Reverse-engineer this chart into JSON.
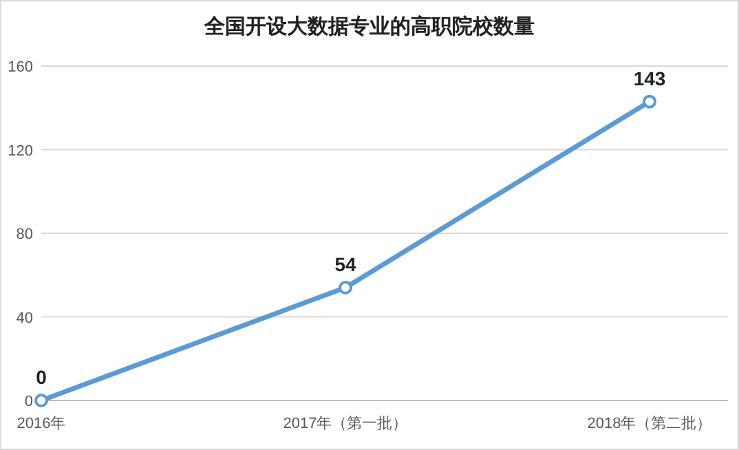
{
  "chart_data": {
    "type": "line",
    "title": "全国开设大数据专业的高职院校数量",
    "categories": [
      "2016年",
      "2017年（第一批）",
      "2018年（第二批）"
    ],
    "values": [
      0,
      54,
      143
    ],
    "color": "#5b9bd5",
    "ylim": [
      0,
      160
    ],
    "yticks": [
      0,
      40,
      80,
      120,
      160
    ],
    "grid": "y",
    "marker": "circle",
    "line_style": "solid",
    "data_labels": true
  }
}
